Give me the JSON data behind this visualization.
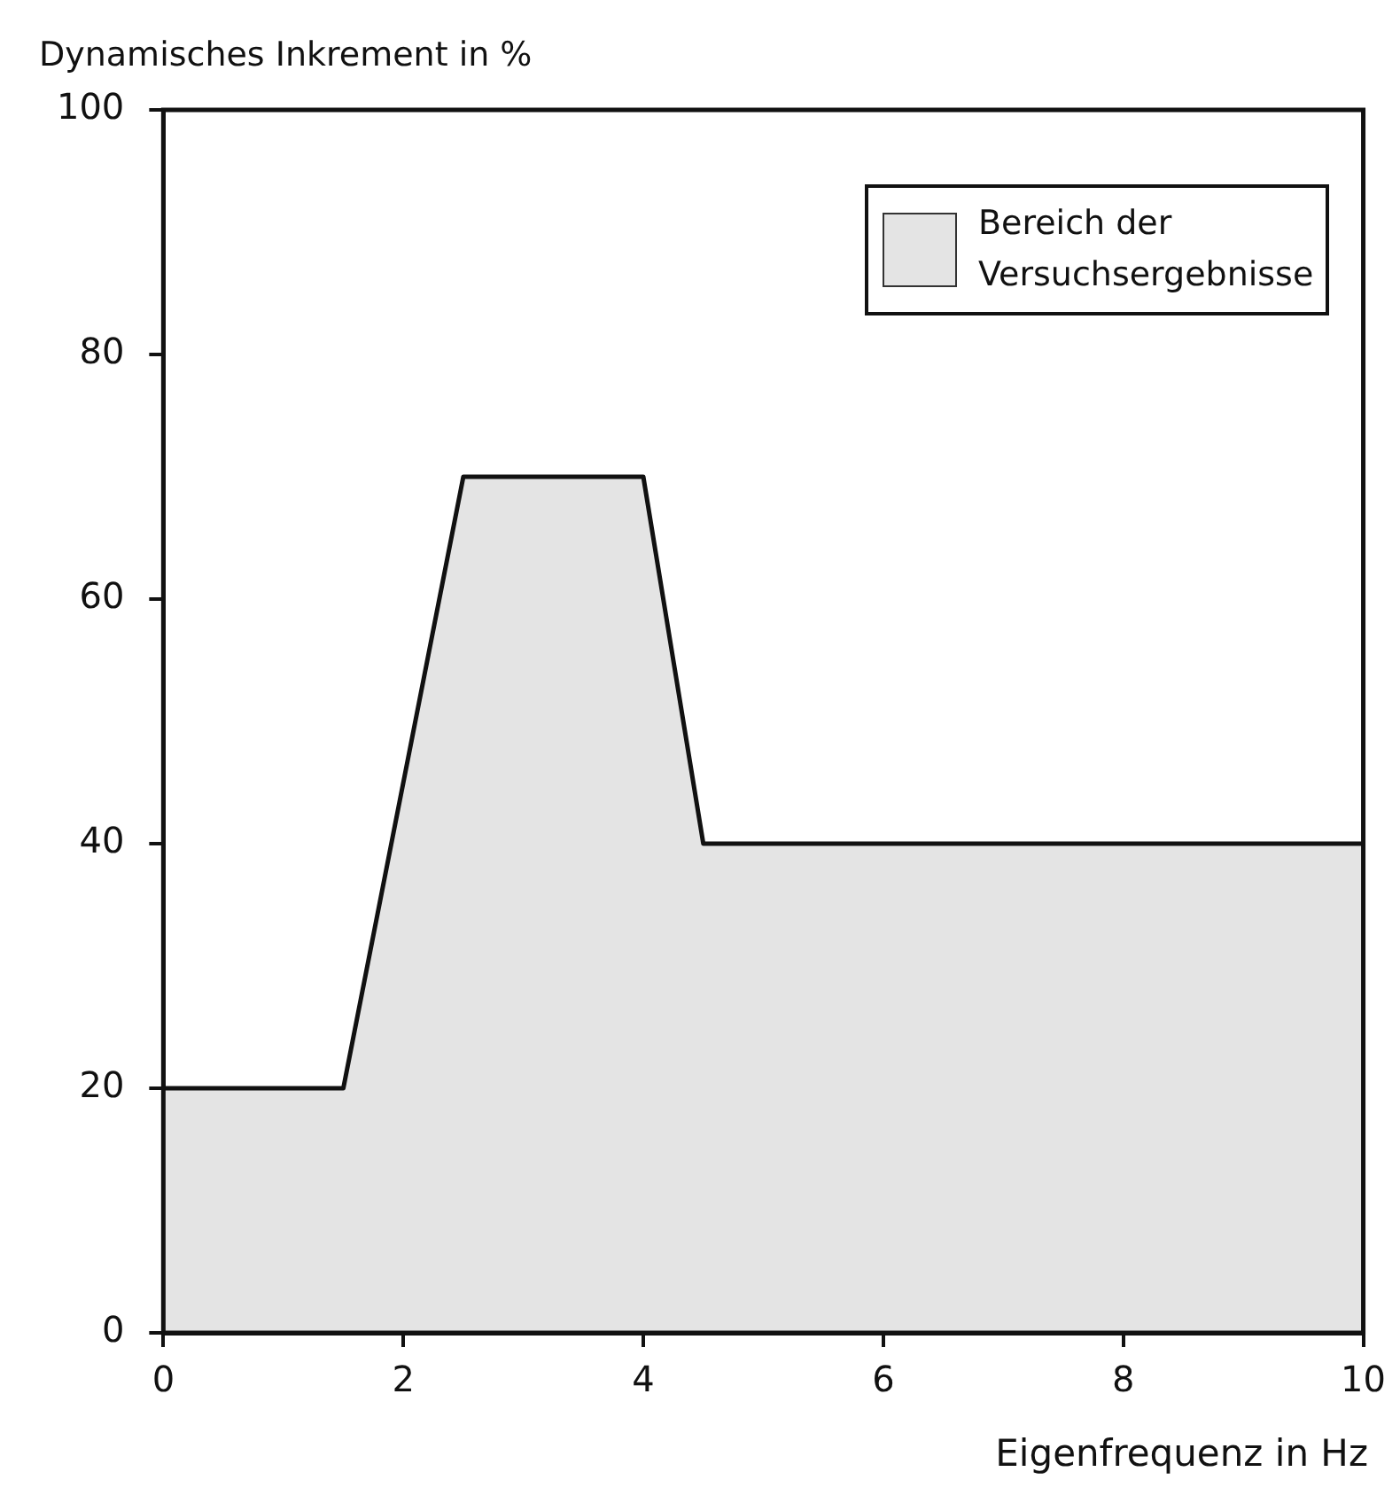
{
  "chart_data": {
    "type": "area",
    "xlabel": "Eigenfrequenz in Hz",
    "ylabel": "Dynamisches Inkrement in %",
    "x": [
      0,
      1.5,
      2.5,
      4,
      4.5,
      10
    ],
    "series": [
      {
        "name": "Bereich der Versuchsergebnisse",
        "color": "#e4e4e4",
        "values": [
          20,
          20,
          70,
          70,
          40,
          40
        ]
      }
    ],
    "xlim": [
      0,
      10
    ],
    "xticks": [
      0,
      2,
      4,
      6,
      8,
      10
    ],
    "ylim": [
      0,
      100
    ],
    "yticks": [
      0,
      20,
      40,
      60,
      80,
      100
    ],
    "grid": false,
    "legend": "top right",
    "marker": "none",
    "line_style": "solid"
  }
}
